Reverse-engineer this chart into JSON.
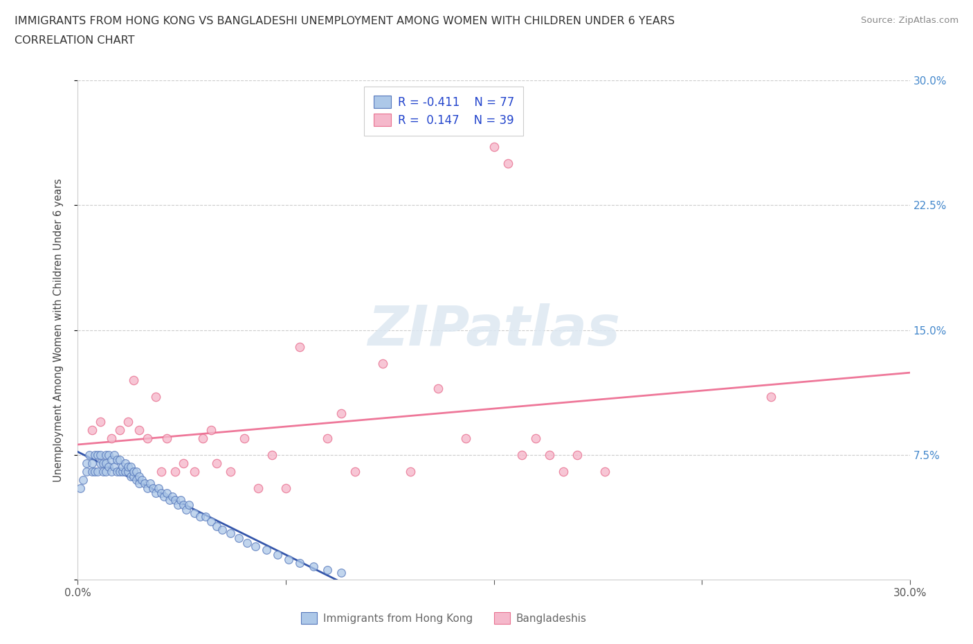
{
  "title_line1": "IMMIGRANTS FROM HONG KONG VS BANGLADESHI UNEMPLOYMENT AMONG WOMEN WITH CHILDREN UNDER 6 YEARS",
  "title_line2": "CORRELATION CHART",
  "source": "Source: ZipAtlas.com",
  "ylabel": "Unemployment Among Women with Children Under 6 years",
  "xlim": [
    0.0,
    0.3
  ],
  "ylim": [
    0.0,
    0.3
  ],
  "color_hk_fill": "#adc8e8",
  "color_hk_edge": "#5577bb",
  "color_bd_fill": "#f5b8cb",
  "color_bd_edge": "#e87090",
  "color_hk_trendline": "#3355aa",
  "color_hk_trendline_ext": "#aabbcc",
  "color_bd_trendline": "#ee7799",
  "watermark_text": "ZIPatlas",
  "r_hk": "-0.411",
  "n_hk": "77",
  "r_bd": "0.147",
  "n_bd": "39",
  "hk_x": [
    0.001,
    0.002,
    0.003,
    0.003,
    0.004,
    0.005,
    0.005,
    0.006,
    0.006,
    0.007,
    0.007,
    0.008,
    0.008,
    0.009,
    0.009,
    0.01,
    0.01,
    0.01,
    0.011,
    0.011,
    0.012,
    0.012,
    0.013,
    0.013,
    0.014,
    0.014,
    0.015,
    0.015,
    0.016,
    0.016,
    0.017,
    0.017,
    0.018,
    0.018,
    0.019,
    0.019,
    0.02,
    0.02,
    0.021,
    0.021,
    0.022,
    0.022,
    0.023,
    0.024,
    0.025,
    0.026,
    0.027,
    0.028,
    0.029,
    0.03,
    0.031,
    0.032,
    0.033,
    0.034,
    0.035,
    0.036,
    0.037,
    0.038,
    0.039,
    0.04,
    0.042,
    0.044,
    0.046,
    0.048,
    0.05,
    0.052,
    0.055,
    0.058,
    0.061,
    0.064,
    0.068,
    0.072,
    0.076,
    0.08,
    0.085,
    0.09,
    0.095
  ],
  "hk_y": [
    0.055,
    0.06,
    0.065,
    0.07,
    0.075,
    0.065,
    0.07,
    0.065,
    0.075,
    0.065,
    0.075,
    0.07,
    0.075,
    0.065,
    0.07,
    0.065,
    0.07,
    0.075,
    0.068,
    0.075,
    0.065,
    0.072,
    0.068,
    0.075,
    0.065,
    0.072,
    0.065,
    0.072,
    0.065,
    0.068,
    0.065,
    0.07,
    0.065,
    0.068,
    0.062,
    0.068,
    0.062,
    0.065,
    0.06,
    0.065,
    0.058,
    0.062,
    0.06,
    0.058,
    0.055,
    0.058,
    0.055,
    0.052,
    0.055,
    0.052,
    0.05,
    0.052,
    0.048,
    0.05,
    0.048,
    0.045,
    0.048,
    0.045,
    0.042,
    0.045,
    0.04,
    0.038,
    0.038,
    0.035,
    0.032,
    0.03,
    0.028,
    0.025,
    0.022,
    0.02,
    0.018,
    0.015,
    0.012,
    0.01,
    0.008,
    0.006,
    0.004
  ],
  "bd_x": [
    0.005,
    0.008,
    0.012,
    0.015,
    0.018,
    0.02,
    0.022,
    0.025,
    0.028,
    0.03,
    0.032,
    0.035,
    0.038,
    0.042,
    0.045,
    0.048,
    0.05,
    0.055,
    0.06,
    0.065,
    0.07,
    0.075,
    0.08,
    0.09,
    0.095,
    0.1,
    0.11,
    0.12,
    0.13,
    0.14,
    0.15,
    0.155,
    0.16,
    0.165,
    0.17,
    0.175,
    0.18,
    0.19,
    0.25
  ],
  "bd_y": [
    0.09,
    0.095,
    0.085,
    0.09,
    0.095,
    0.12,
    0.09,
    0.085,
    0.11,
    0.065,
    0.085,
    0.065,
    0.07,
    0.065,
    0.085,
    0.09,
    0.07,
    0.065,
    0.085,
    0.055,
    0.075,
    0.055,
    0.14,
    0.085,
    0.1,
    0.065,
    0.13,
    0.065,
    0.115,
    0.085,
    0.26,
    0.25,
    0.075,
    0.085,
    0.075,
    0.065,
    0.075,
    0.065,
    0.11
  ]
}
